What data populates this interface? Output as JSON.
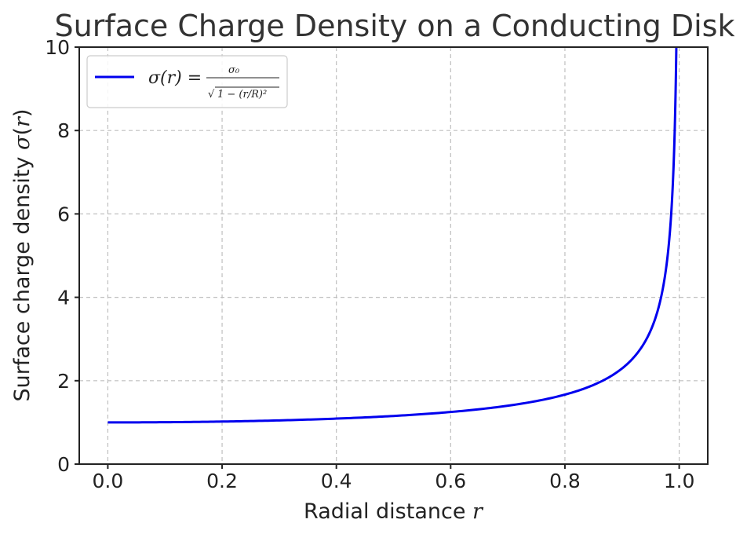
{
  "chart_data": {
    "type": "line",
    "title": "Surface Charge Density on a Conducting Disk",
    "xlabel": "Radial distance r",
    "ylabel": "Surface charge density σ(r)",
    "xlim": [
      -0.05,
      1.05
    ],
    "ylim": [
      0,
      10
    ],
    "xticks": [
      0.0,
      0.2,
      0.4,
      0.6,
      0.8,
      1.0
    ],
    "xtick_labels": [
      "0.0",
      "0.2",
      "0.4",
      "0.6",
      "0.8",
      "1.0"
    ],
    "yticks": [
      0,
      2,
      4,
      6,
      8,
      10
    ],
    "ytick_labels": [
      "0",
      "2",
      "4",
      "6",
      "8",
      "10"
    ],
    "grid": true,
    "legend_position": "top-left",
    "legend_label": "σ(r) = σ0 / √(1 − (r/R)²)",
    "series": [
      {
        "name": "σ(r) = σ0 / √(1 − (r/R)²)",
        "color": "#0000ee",
        "x": [
          0.0,
          0.1,
          0.2,
          0.3,
          0.4,
          0.5,
          0.6,
          0.7,
          0.8,
          0.85,
          0.9,
          0.93,
          0.95,
          0.97,
          0.98,
          0.99,
          0.995
        ],
        "y": [
          1.0,
          1.005,
          1.021,
          1.048,
          1.091,
          1.155,
          1.25,
          1.4,
          1.667,
          1.898,
          2.294,
          2.721,
          3.203,
          4.113,
          5.025,
          7.089,
          10.0
        ]
      }
    ]
  }
}
